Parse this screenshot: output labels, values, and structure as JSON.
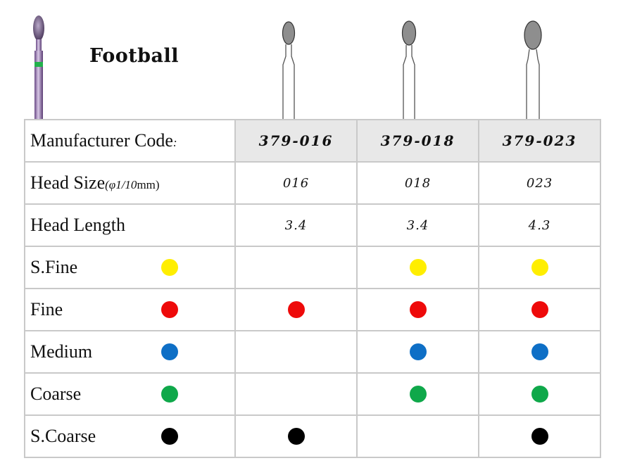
{
  "product": {
    "title": "Football"
  },
  "colors": {
    "yellow": "#ffee00",
    "red": "#ee0a0a",
    "blue": "#0e6fc6",
    "green": "#0fa84a",
    "black": "#000000",
    "grit_band": "#22b14c"
  },
  "table": {
    "header": {
      "label": "Manufacturer Code",
      "label_suffix": ":",
      "codes": [
        "379-016",
        "379-018",
        "379-023"
      ]
    },
    "head_size": {
      "label": "Head Size",
      "unit_open": "(φ",
      "unit_fraction": "1/10",
      "unit_mm": "mm)",
      "values": [
        "016",
        "018",
        "023"
      ]
    },
    "head_length": {
      "label": "Head Length",
      "values": [
        "3.4",
        "3.4",
        "4.3"
      ]
    },
    "grits": [
      {
        "label": "S.Fine",
        "color": "#ffee00",
        "icon": "yellow-dot-icon",
        "available": [
          false,
          true,
          true
        ]
      },
      {
        "label": "Fine",
        "color": "#ee0a0a",
        "icon": "red-dot-icon",
        "available": [
          true,
          true,
          true
        ]
      },
      {
        "label": "Medium",
        "color": "#0e6fc6",
        "icon": "blue-dot-icon",
        "available": [
          false,
          true,
          true
        ]
      },
      {
        "label": "Coarse",
        "color": "#0fa84a",
        "icon": "green-dot-icon",
        "available": [
          false,
          true,
          true
        ]
      },
      {
        "label": "S.Coarse",
        "color": "#000000",
        "icon": "black-dot-icon",
        "available": [
          true,
          false,
          true
        ]
      }
    ]
  }
}
